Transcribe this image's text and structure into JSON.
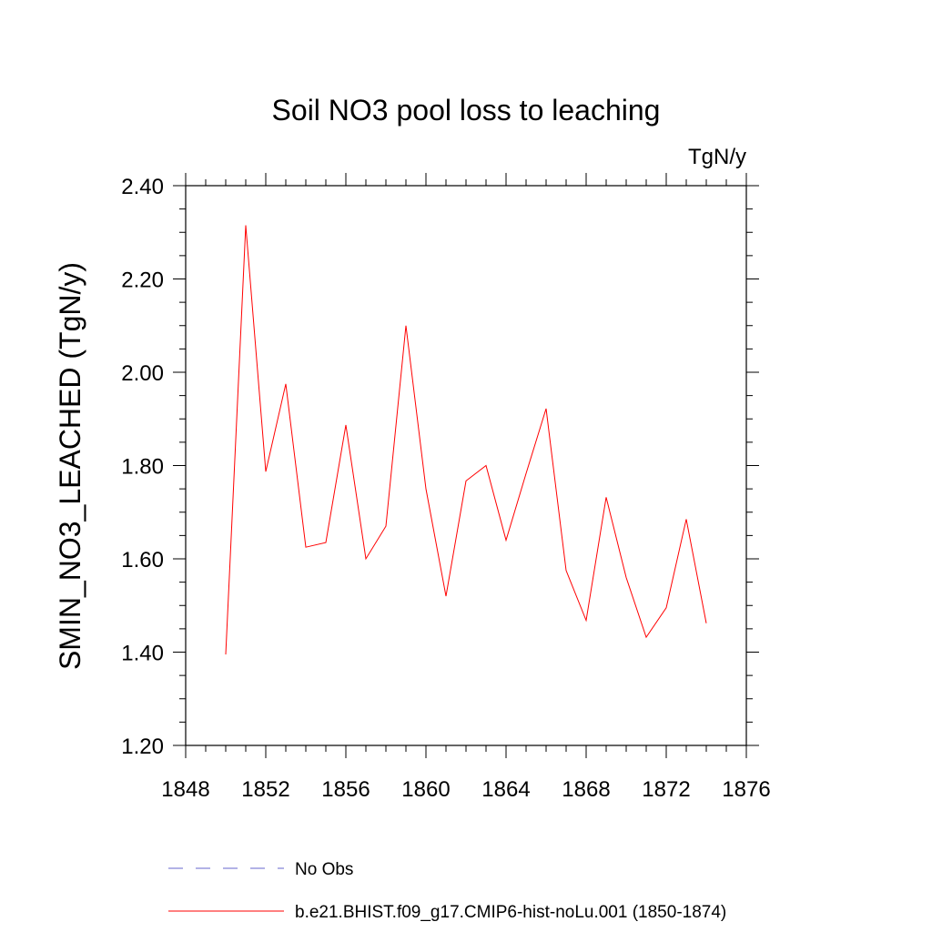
{
  "chart_data": {
    "type": "line",
    "title": "Soil NO3 pool loss to leaching",
    "units_label": "TgN/y",
    "xlabel": "",
    "ylabel": "SMIN_NO3_LEACHED  (TgN/y)",
    "xlim": [
      1848,
      1876
    ],
    "ylim": [
      1.2,
      2.4
    ],
    "x_ticks": [
      1848,
      1852,
      1856,
      1860,
      1864,
      1868,
      1872,
      1876
    ],
    "x_tick_labels": [
      "1848",
      "1852",
      "1856",
      "1860",
      "1864",
      "1868",
      "1872",
      "1876"
    ],
    "y_ticks": [
      1.2,
      1.4,
      1.6,
      1.8,
      2.0,
      2.2,
      2.4
    ],
    "y_tick_labels": [
      "1.20",
      "1.40",
      "1.60",
      "1.80",
      "2.00",
      "2.20",
      "2.40"
    ],
    "grid": false,
    "legend_position": "bottom",
    "series": [
      {
        "name": "No Obs",
        "color": "#6666cc",
        "dash": "dashed",
        "x": [],
        "values": []
      },
      {
        "name": "b.e21.BHIST.f09_g17.CMIP6-hist-noLu.001 (1850-1874)",
        "color": "#ff0000",
        "dash": "solid",
        "x": [
          1850,
          1851,
          1852,
          1853,
          1854,
          1855,
          1856,
          1857,
          1858,
          1859,
          1860,
          1861,
          1862,
          1863,
          1864,
          1865,
          1866,
          1867,
          1868,
          1869,
          1870,
          1871,
          1872,
          1873,
          1874
        ],
        "values": [
          1.395,
          2.315,
          1.787,
          1.975,
          1.625,
          1.635,
          1.887,
          1.6,
          1.67,
          2.1,
          1.75,
          1.52,
          1.767,
          1.8,
          1.64,
          1.783,
          1.922,
          1.575,
          1.468,
          1.732,
          1.56,
          1.432,
          1.495,
          1.685,
          1.462
        ]
      }
    ]
  }
}
